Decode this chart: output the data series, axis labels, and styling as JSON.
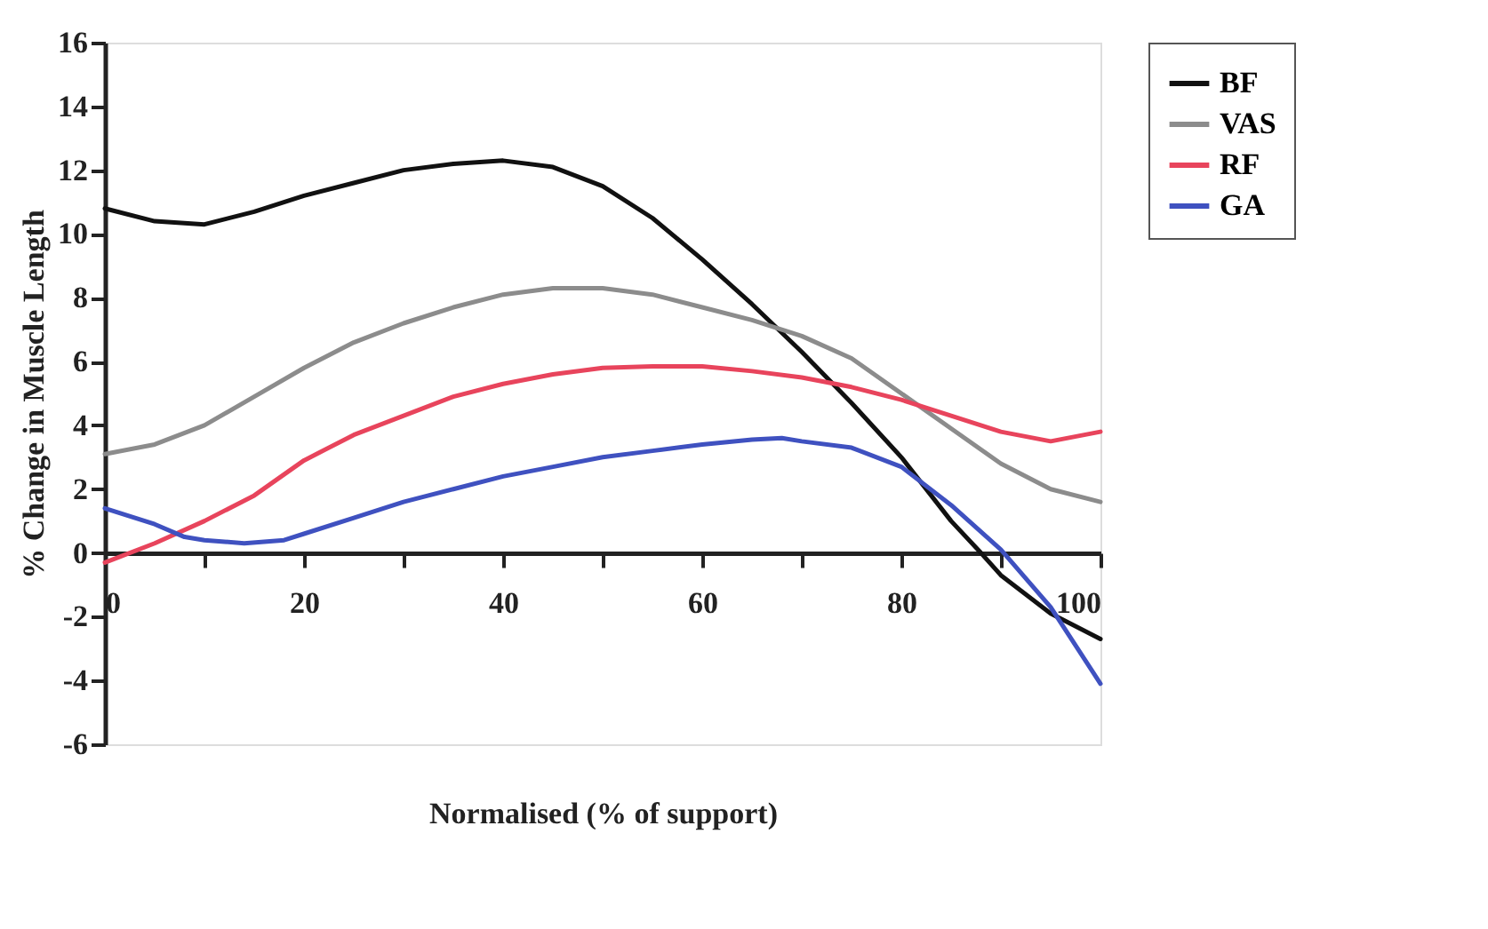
{
  "chart_data": {
    "type": "line",
    "xlabel": "Normalised (% of support)",
    "ylabel": "% Change in Muscle Length",
    "xlim": [
      0,
      100
    ],
    "ylim": [
      -6,
      16
    ],
    "xticks": [
      0,
      {
        "value": 10,
        "label": null
      },
      20,
      {
        "value": 30,
        "label": null
      },
      40,
      {
        "value": 50,
        "label": null
      },
      60,
      {
        "value": 70,
        "label": null
      },
      80,
      {
        "value": 90,
        "label": null
      },
      100
    ],
    "yticks": [
      -6,
      -4,
      -2,
      0,
      2,
      4,
      6,
      8,
      10,
      12,
      14,
      16
    ],
    "grid": false,
    "legend": "right",
    "marker": "none",
    "line_style": "solid",
    "series": [
      {
        "name": "BF",
        "color": "#111111",
        "x": [
          0,
          5,
          10,
          15,
          20,
          25,
          30,
          35,
          40,
          45,
          50,
          55,
          60,
          65,
          70,
          75,
          80,
          85,
          88,
          90,
          95,
          100
        ],
        "values": [
          10.8,
          10.4,
          10.3,
          10.7,
          11.2,
          11.6,
          12.0,
          12.2,
          12.3,
          12.1,
          11.5,
          10.5,
          9.2,
          7.8,
          6.3,
          4.7,
          3.0,
          1.0,
          0,
          -0.7,
          -1.9,
          -2.7
        ]
      },
      {
        "name": "VAS",
        "color": "#8c8c8c",
        "x": [
          0,
          5,
          10,
          15,
          20,
          25,
          30,
          35,
          40,
          45,
          50,
          55,
          60,
          65,
          70,
          75,
          80,
          85,
          90,
          95,
          100
        ],
        "values": [
          3.1,
          3.4,
          4.0,
          4.9,
          5.8,
          6.6,
          7.2,
          7.7,
          8.1,
          8.3,
          8.3,
          8.1,
          7.7,
          7.3,
          6.8,
          6.1,
          5.0,
          3.9,
          2.8,
          2.0,
          1.6
        ]
      },
      {
        "name": "RF",
        "color": "#e8445c",
        "x": [
          0,
          5,
          10,
          15,
          20,
          25,
          30,
          35,
          40,
          45,
          50,
          55,
          60,
          65,
          70,
          75,
          80,
          85,
          90,
          95,
          100
        ],
        "values": [
          -0.3,
          0.3,
          1.0,
          1.8,
          2.9,
          3.7,
          4.3,
          4.9,
          5.3,
          5.6,
          5.8,
          5.85,
          5.85,
          5.7,
          5.5,
          5.2,
          4.8,
          4.3,
          3.8,
          3.5,
          3.8
        ]
      },
      {
        "name": "GA",
        "color": "#3f51c0",
        "x": [
          0,
          5,
          8,
          10,
          14,
          18,
          20,
          25,
          30,
          35,
          40,
          45,
          50,
          55,
          60,
          65,
          68,
          70,
          75,
          80,
          85,
          90,
          95,
          100
        ],
        "values": [
          1.4,
          0.9,
          0.5,
          0.4,
          0.3,
          0.4,
          0.6,
          1.1,
          1.6,
          2.0,
          2.4,
          2.7,
          3.0,
          3.2,
          3.4,
          3.55,
          3.6,
          3.5,
          3.3,
          2.7,
          1.5,
          0.1,
          -1.7,
          -4.1
        ]
      }
    ]
  }
}
